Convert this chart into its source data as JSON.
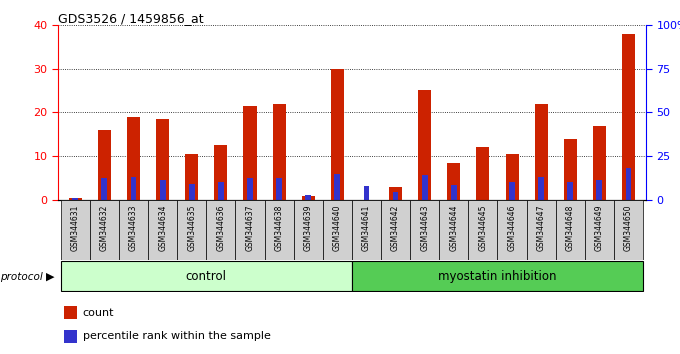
{
  "title": "GDS3526 / 1459856_at",
  "samples": [
    "GSM344631",
    "GSM344632",
    "GSM344633",
    "GSM344634",
    "GSM344635",
    "GSM344636",
    "GSM344637",
    "GSM344638",
    "GSM344639",
    "GSM344640",
    "GSM344641",
    "GSM344642",
    "GSM344643",
    "GSM344644",
    "GSM344645",
    "GSM344646",
    "GSM344647",
    "GSM344648",
    "GSM344649",
    "GSM344650"
  ],
  "count": [
    0.5,
    16,
    19,
    18.5,
    10.5,
    12.5,
    21.5,
    22,
    1,
    30,
    0,
    3,
    25,
    8.5,
    12,
    10.5,
    22,
    14,
    17,
    38
  ],
  "percentile": [
    1,
    12.5,
    13,
    11.5,
    9,
    10.5,
    12.5,
    12.5,
    3,
    15,
    8,
    4.5,
    14,
    8.5,
    0,
    10.5,
    13,
    10,
    11.5,
    18
  ],
  "control_count": 10,
  "control_label": "control",
  "treatment_label": "myostatin inhibition",
  "protocol_label": "protocol",
  "bar_color_red": "#cc2200",
  "bar_color_blue": "#3333cc",
  "ylim_left": [
    0,
    40
  ],
  "ylim_right": [
    0,
    100
  ],
  "yticks_left": [
    0,
    10,
    20,
    30,
    40
  ],
  "yticks_right": [
    0,
    25,
    50,
    75,
    100
  ],
  "control_bg": "#ccffcc",
  "treatment_bg": "#55cc55",
  "bar_width": 0.45,
  "percentile_bar_width": 0.2,
  "gray_tick_bg": "#d0d0d0"
}
